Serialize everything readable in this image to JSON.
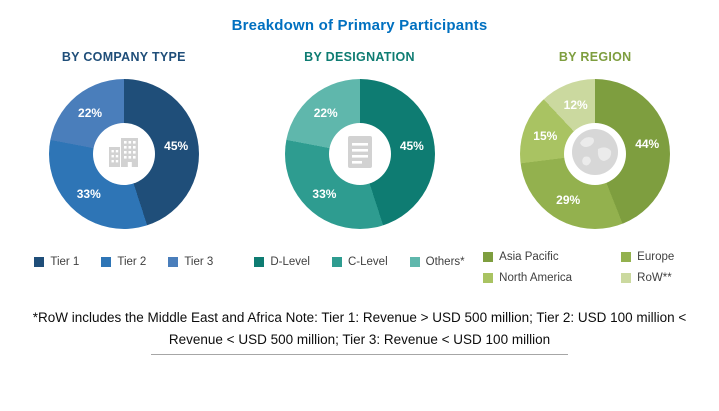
{
  "title": "Breakdown of Primary Participants",
  "title_color": "#0070C0",
  "chart_data": [
    {
      "type": "pie",
      "subtype": "donut",
      "title": "BY COMPANY TYPE",
      "title_color": "#1F4E79",
      "unit": "%",
      "labels": [
        "Tier 1",
        "Tier 2",
        "Tier 3"
      ],
      "values": [
        45,
        33,
        22
      ],
      "colors": [
        "#1F4E79",
        "#2E75B6",
        "#4A7EBB"
      ],
      "center_icon": "building-icon",
      "legend_position": "bottom"
    },
    {
      "type": "pie",
      "subtype": "donut",
      "title": "BY DESIGNATION",
      "title_color": "#0E7C72",
      "unit": "%",
      "labels": [
        "D-Level",
        "C-Level",
        "Others*"
      ],
      "values": [
        45,
        33,
        22
      ],
      "colors": [
        "#0E7C72",
        "#2E9C90",
        "#5FB7AC"
      ],
      "center_icon": "document-icon",
      "legend_position": "bottom"
    },
    {
      "type": "pie",
      "subtype": "donut",
      "title": "BY REGION",
      "title_color": "#7E9E3F",
      "unit": "%",
      "labels": [
        "Asia Pacific",
        "Europe",
        "North America",
        "RoW**"
      ],
      "values": [
        44,
        29,
        15,
        12
      ],
      "colors": [
        "#7E9E3F",
        "#93B14E",
        "#A9C362",
        "#CBD99F"
      ],
      "center_icon": "globe-icon",
      "legend_position": "bottom"
    }
  ],
  "footnote": {
    "line1": "*RoW includes the Middle East and Africa Note: Tier 1: Revenue > USD 500 million; Tier 2: USD 100 million <",
    "line2": "Revenue < USD 500 million; Tier 3: Revenue < USD 100 million"
  }
}
